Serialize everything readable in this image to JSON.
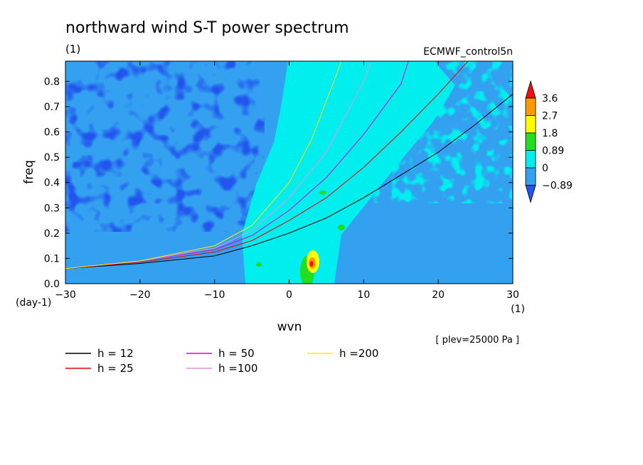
{
  "chart_data": {
    "type": "heatmap",
    "title": "northward wind S-T power spectrum",
    "subtitle_left": "(1)",
    "subtitle_right": "ECMWF_control5n",
    "xlabel": "wvn",
    "ylabel": "freq",
    "x_unit_label": "(1)",
    "y_unit_label": "(day-1)",
    "xlim": [
      -30,
      30
    ],
    "ylim": [
      0,
      0.88
    ],
    "x_ticks": [
      -30,
      -20,
      -10,
      0,
      10,
      20,
      30
    ],
    "x_tick_labels": [
      "-30",
      "-20",
      "-10",
      "0",
      "10",
      "20",
      "30"
    ],
    "y_ticks": [
      0,
      0.1,
      0.2,
      0.3,
      0.4,
      0.5,
      0.6,
      0.7,
      0.8
    ],
    "y_tick_labels": [
      "0.0",
      "0.1",
      "0.2",
      "0.3",
      "0.4",
      "0.5",
      "0.6",
      "0.7",
      "0.8"
    ],
    "annotation": "[ plev=25000 Pa ]",
    "colorbar": {
      "labels": [
        "3.6",
        "2.7",
        "1.8",
        "0.89",
        "0",
        "-0.89"
      ],
      "levels": [
        -0.89,
        0,
        0.89,
        1.8,
        2.7,
        3.6
      ],
      "colors": [
        "#2255ee",
        "#33a0f0",
        "#00eeee",
        "#22dd22",
        "#ffff00",
        "#ff9900",
        "#ee1111"
      ]
    },
    "background_field": {
      "description_levels": {
        "dark_blue": "< -0.89",
        "mid_blue": "-0.89 to 0",
        "cyan": "0 to 0.89",
        "green": "0.89 to 1.8",
        "yellow": "1.8 to 2.7",
        "orange": "2.7 to 3.6",
        "red": "> 3.6"
      },
      "peak_location": {
        "wvn": 3,
        "freq": 0.08
      }
    },
    "series": [
      {
        "name": "h = 12",
        "color": "#000000",
        "x": [
          -30,
          -20,
          -10,
          -5,
          0,
          5,
          10,
          15,
          20,
          25,
          30
        ],
        "y": [
          0.06,
          0.08,
          0.11,
          0.15,
          0.2,
          0.26,
          0.34,
          0.43,
          0.52,
          0.63,
          0.75
        ]
      },
      {
        "name": "h = 25",
        "color": "#ee0000",
        "x": [
          -30,
          -20,
          -10,
          -5,
          0,
          5,
          10,
          15,
          20,
          24
        ],
        "y": [
          0.06,
          0.085,
          0.125,
          0.17,
          0.25,
          0.34,
          0.46,
          0.6,
          0.75,
          0.88
        ]
      },
      {
        "name": "h = 50",
        "color": "#dd00cc",
        "x": [
          -30,
          -20,
          -10,
          -5,
          0,
          5,
          10,
          15,
          16
        ],
        "y": [
          0.06,
          0.09,
          0.135,
          0.19,
          0.29,
          0.42,
          0.59,
          0.79,
          0.88
        ]
      },
      {
        "name": "h =100",
        "color": "#dd99dd",
        "x": [
          -30,
          -20,
          -10,
          -5,
          0,
          5,
          10,
          11
        ],
        "y": [
          0.06,
          0.09,
          0.14,
          0.21,
          0.34,
          0.52,
          0.8,
          0.88
        ]
      },
      {
        "name": "h =200",
        "color": "#ffee00",
        "x": [
          -30,
          -20,
          -10,
          -5,
          0,
          3,
          6,
          7
        ],
        "y": [
          0.06,
          0.09,
          0.15,
          0.23,
          0.4,
          0.57,
          0.8,
          0.88
        ]
      }
    ]
  }
}
